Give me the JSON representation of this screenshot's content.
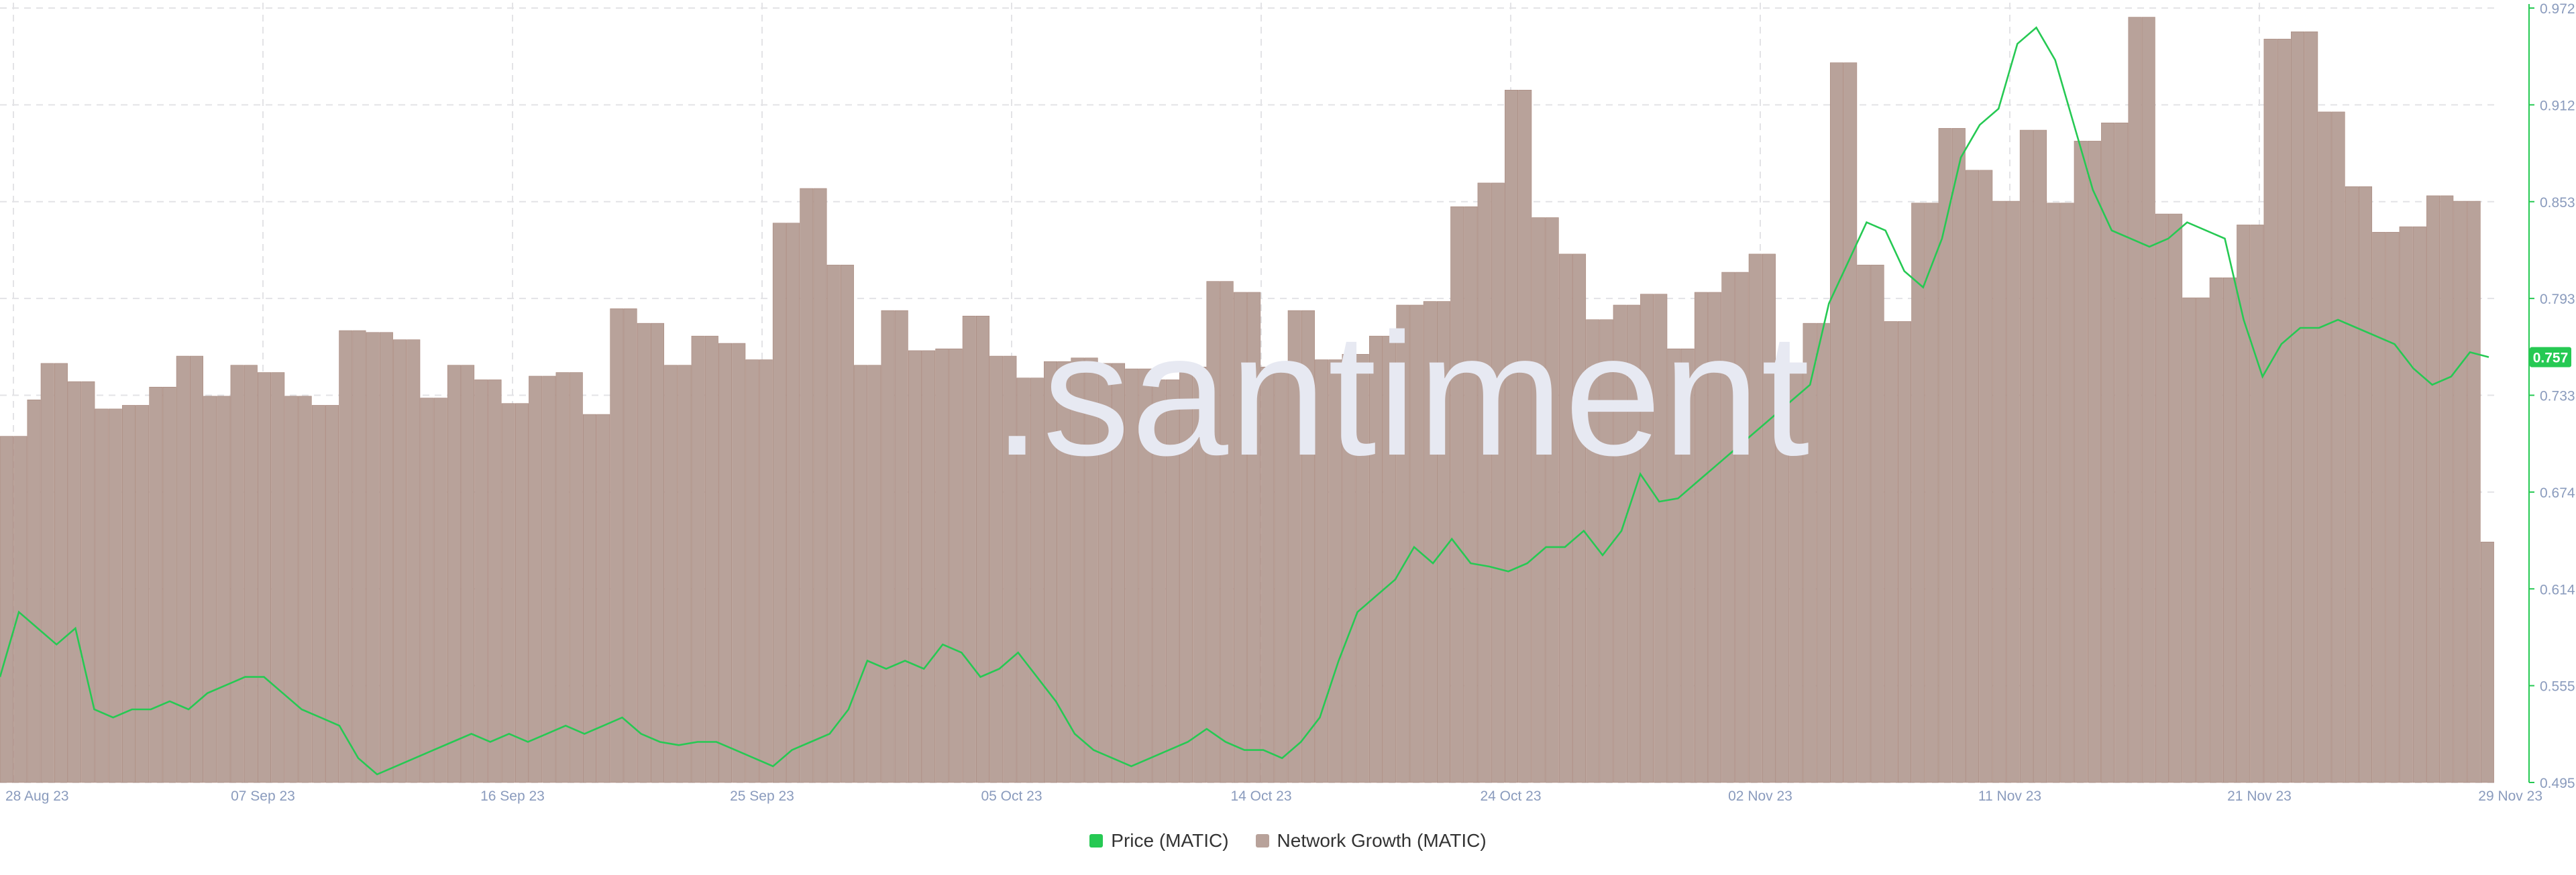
{
  "watermark": ".santiment",
  "colors": {
    "price": "#26c953",
    "network_growth": "#b8a29a",
    "grid": "#e3e3e6",
    "axis_text": "#8a9bbd"
  },
  "chart_data": {
    "type": "bar+line",
    "x_ticks": [
      "28 Aug 23",
      "07 Sep 23",
      "16 Sep 23",
      "25 Sep 23",
      "05 Oct 23",
      "14 Oct 23",
      "24 Oct 23",
      "02 Nov 23",
      "11 Nov 23",
      "21 Nov 23",
      "29 Nov 23"
    ],
    "y_right_ticks": [
      "0.972",
      "0.912",
      "0.853",
      "0.793",
      "0.733",
      "0.674",
      "0.614",
      "0.555",
      "0.495"
    ],
    "y_right_range": [
      0.495,
      0.972
    ],
    "current_price_label": "0.757",
    "series": [
      {
        "name": "Price (MATIC)",
        "type": "line",
        "axis": "right",
        "values": [
          0.56,
          0.6,
          0.59,
          0.58,
          0.59,
          0.54,
          0.535,
          0.54,
          0.54,
          0.545,
          0.54,
          0.55,
          0.555,
          0.56,
          0.56,
          0.55,
          0.54,
          0.535,
          0.53,
          0.51,
          0.5,
          0.505,
          0.51,
          0.515,
          0.52,
          0.525,
          0.52,
          0.525,
          0.52,
          0.525,
          0.53,
          0.525,
          0.53,
          0.535,
          0.525,
          0.52,
          0.518,
          0.52,
          0.52,
          0.515,
          0.51,
          0.505,
          0.515,
          0.52,
          0.525,
          0.54,
          0.57,
          0.565,
          0.57,
          0.565,
          0.58,
          0.575,
          0.56,
          0.565,
          0.575,
          0.56,
          0.545,
          0.525,
          0.515,
          0.51,
          0.505,
          0.51,
          0.515,
          0.52,
          0.528,
          0.52,
          0.515,
          0.515,
          0.51,
          0.52,
          0.535,
          0.57,
          0.6,
          0.61,
          0.62,
          0.64,
          0.63,
          0.645,
          0.63,
          0.628,
          0.625,
          0.63,
          0.64,
          0.64,
          0.65,
          0.635,
          0.65,
          0.685,
          0.668,
          0.67,
          0.68,
          0.69,
          0.7,
          0.71,
          0.72,
          0.73,
          0.74,
          0.79,
          0.815,
          0.84,
          0.835,
          0.81,
          0.8,
          0.83,
          0.88,
          0.9,
          0.91,
          0.95,
          0.96,
          0.94,
          0.9,
          0.86,
          0.835,
          0.83,
          0.825,
          0.83,
          0.84,
          0.835,
          0.83,
          0.78,
          0.745,
          0.765,
          0.775,
          0.775,
          0.78,
          0.775,
          0.77,
          0.765,
          0.75,
          0.74,
          0.745,
          0.76,
          0.757
        ]
      },
      {
        "name": "Network Growth (MATIC)",
        "type": "bar",
        "axis": "hidden",
        "values": [
          6700,
          6700,
          6900,
          7100,
          7100,
          7000,
          7000,
          6850,
          6850,
          6870,
          6870,
          6970,
          6970,
          7140,
          7140,
          6920,
          6920,
          7090,
          7090,
          7050,
          7050,
          6920,
          6920,
          6870,
          6870,
          7280,
          7280,
          7270,
          7270,
          7230,
          7230,
          6910,
          6910,
          7090,
          7090,
          7010,
          7010,
          6880,
          6880,
          7030,
          7030,
          7050,
          7050,
          6820,
          6820,
          7400,
          7400,
          7320,
          7320,
          7090,
          7090,
          7250,
          7250,
          7210,
          7210,
          7120,
          7120,
          7870,
          7870,
          8060,
          8060,
          7640,
          7640,
          7090,
          7090,
          7390,
          7390,
          7170,
          7170,
          7180,
          7180,
          7360,
          7360,
          7140,
          7140,
          7020,
          7020,
          7110,
          7110,
          7130,
          7130,
          7100,
          7100,
          7070,
          7070,
          7010,
          7010,
          7080,
          7080,
          7550,
          7550,
          7490,
          7490,
          7080,
          7080,
          7390,
          7390,
          7120,
          7120,
          7150,
          7150,
          7250,
          7250,
          7420,
          7420,
          7440,
          7440,
          7960,
          7960,
          8090,
          8090,
          8600,
          8600,
          7900,
          7900,
          7700,
          7700,
          7340,
          7340,
          7420,
          7420,
          7480,
          7480,
          7180,
          7180,
          7490,
          7490,
          7600,
          7600,
          7700,
          7700,
          7090,
          7090,
          7320,
          7320,
          8750,
          8750,
          7640,
          7640,
          7330,
          7330,
          7980,
          7980,
          8390,
          8390,
          8160,
          8160,
          7990,
          7990,
          8380,
          8380,
          7980,
          7980,
          8320,
          8320,
          8420,
          8420,
          9000,
          9000,
          7920,
          7920,
          7460,
          7460,
          7570,
          7570,
          7860,
          7860,
          8880,
          8880,
          8920,
          8920,
          8480,
          8480,
          8070,
          8070,
          7820,
          7820,
          7850,
          7850,
          8020,
          8020,
          7990,
          7990,
          6120
        ]
      }
    ]
  },
  "legend": {
    "price_label": "Price (MATIC)",
    "network_label": "Network Growth (MATIC)"
  }
}
